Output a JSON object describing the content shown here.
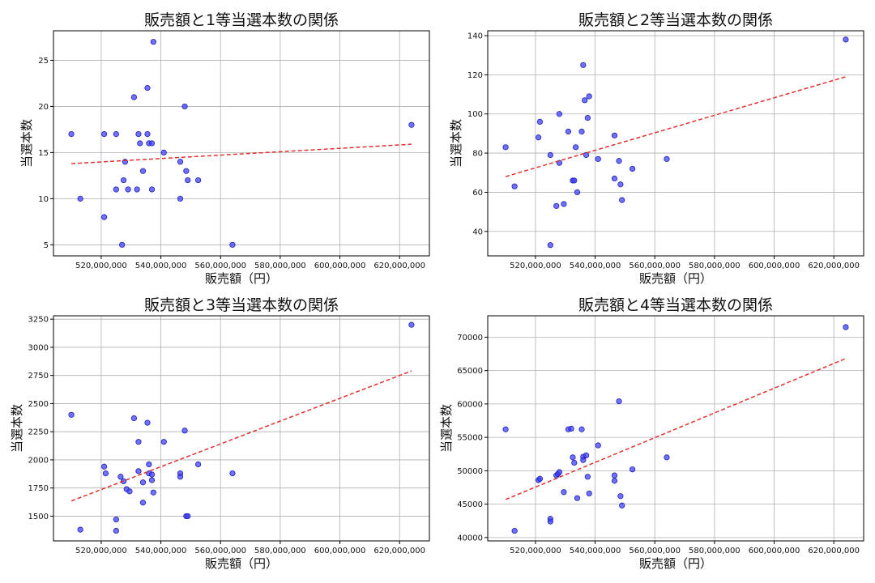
{
  "colors": {
    "points": "#3a3aff",
    "point_edge": "#1f1fb4",
    "trend": "#e03030"
  },
  "chart_data": [
    {
      "type": "scatter",
      "title": "販売額と1等当選本数の関係",
      "xlabel": "販売額（円）",
      "ylabel": "当選本数",
      "xlim": [
        504000000,
        630000000
      ],
      "ylim": [
        3.8,
        28.2
      ],
      "xticks": [
        520000000,
        540000000,
        560000000,
        580000000,
        600000000,
        620000000
      ],
      "xtick_labels": [
        "520,000,000",
        "540,000,000",
        "560,000,000",
        "580,000,000",
        "600,000,000",
        "620,000,000"
      ],
      "yticks": [
        5,
        10,
        15,
        20,
        25
      ],
      "ytick_labels": [
        "5",
        "10",
        "15",
        "20",
        "25"
      ],
      "grid": true,
      "trend": {
        "x": [
          510000000,
          624000000
        ],
        "y": [
          13.8,
          15.9
        ]
      },
      "x": [
        510000000,
        513000000,
        521000000,
        521000000,
        525000000,
        525000000,
        527000000,
        527500000,
        528000000,
        529000000,
        531000000,
        532000000,
        532500000,
        533000000,
        534000000,
        535500000,
        535500000,
        536000000,
        537000000,
        537000000,
        537500000,
        541000000,
        546500000,
        546500000,
        548000000,
        548500000,
        549000000,
        552500000,
        564000000,
        624000000
      ],
      "y": [
        17,
        10,
        17,
        8,
        17,
        11,
        5,
        12,
        14,
        11,
        21,
        11,
        17,
        16,
        13,
        22,
        17,
        16,
        16,
        11,
        27,
        15,
        14,
        10,
        20,
        13,
        12,
        12,
        5,
        18
      ]
    },
    {
      "type": "scatter",
      "title": "販売額と2等当選本数の関係",
      "xlabel": "販売額（円）",
      "ylabel": "当選本数",
      "xlim": [
        504000000,
        630000000
      ],
      "ylim": [
        27.5,
        142.5
      ],
      "xticks": [
        520000000,
        540000000,
        560000000,
        580000000,
        600000000,
        620000000
      ],
      "xtick_labels": [
        "520,000,000",
        "540,000,000",
        "560,000,000",
        "580,000,000",
        "600,000,000",
        "620,000,000"
      ],
      "yticks": [
        40,
        60,
        80,
        100,
        120,
        140
      ],
      "ytick_labels": [
        "40",
        "60",
        "80",
        "100",
        "120",
        "140"
      ],
      "grid": true,
      "trend": {
        "x": [
          510000000,
          624000000
        ],
        "y": [
          68,
          119
        ]
      },
      "x": [
        510000000,
        513000000,
        521000000,
        521500000,
        525000000,
        525000000,
        527000000,
        528000000,
        528000000,
        529500000,
        531000000,
        532500000,
        533000000,
        533500000,
        534000000,
        535500000,
        536000000,
        536500000,
        537000000,
        537500000,
        538000000,
        541000000,
        546500000,
        546500000,
        548000000,
        548500000,
        549000000,
        552500000,
        564000000,
        624000000
      ],
      "y": [
        83,
        63,
        88,
        96,
        79,
        33,
        53,
        75,
        100,
        54,
        91,
        66,
        66,
        83,
        60,
        91,
        125,
        107,
        79,
        98,
        109,
        77,
        89,
        67,
        76,
        64,
        56,
        72,
        77,
        138
      ]
    },
    {
      "type": "scatter",
      "title": "販売額と3等当選本数の関係",
      "xlabel": "販売額（円）",
      "ylabel": "当選本数",
      "xlim": [
        504000000,
        630000000
      ],
      "ylim": [
        1280,
        3280
      ],
      "xticks": [
        520000000,
        540000000,
        560000000,
        580000000,
        600000000,
        620000000
      ],
      "xtick_labels": [
        "520,000,000",
        "540,000,000",
        "560,000,000",
        "580,000,000",
        "600,000,000",
        "620,000,000"
      ],
      "yticks": [
        1500,
        1750,
        2000,
        2250,
        2500,
        2750,
        3000,
        3250
      ],
      "ytick_labels": [
        "1500",
        "1750",
        "2000",
        "2250",
        "2500",
        "2750",
        "3000",
        "3250"
      ],
      "grid": true,
      "trend": {
        "x": [
          510000000,
          624000000
        ],
        "y": [
          1635,
          2790
        ]
      },
      "x": [
        510000000,
        513000000,
        521000000,
        521500000,
        525000000,
        525000000,
        526500000,
        527500000,
        528500000,
        529500000,
        531000000,
        532500000,
        532500000,
        534000000,
        534000000,
        535500000,
        536000000,
        536000000,
        537000000,
        537000000,
        537500000,
        541000000,
        546500000,
        546500000,
        548000000,
        548500000,
        549000000,
        552500000,
        564000000,
        624000000
      ],
      "y": [
        2400,
        1380,
        1940,
        1880,
        1470,
        1370,
        1850,
        1810,
        1740,
        1720,
        2370,
        2160,
        1900,
        1620,
        1800,
        2330,
        1960,
        1880,
        1870,
        1820,
        1710,
        2160,
        1880,
        1850,
        2260,
        1500,
        1500,
        1960,
        1880,
        3200
      ]
    },
    {
      "type": "scatter",
      "title": "販売額と4等当選本数の関係",
      "xlabel": "販売額（円）",
      "ylabel": "当選本数",
      "xlim": [
        504000000,
        630000000
      ],
      "ylim": [
        39500,
        73200
      ],
      "xticks": [
        520000000,
        540000000,
        560000000,
        580000000,
        600000000,
        620000000
      ],
      "xtick_labels": [
        "520,000,000",
        "540,000,000",
        "560,000,000",
        "580,000,000",
        "600,000,000",
        "620,000,000"
      ],
      "yticks": [
        40000,
        45000,
        50000,
        55000,
        60000,
        65000,
        70000
      ],
      "ytick_labels": [
        "40000",
        "45000",
        "50000",
        "55000",
        "60000",
        "65000",
        "70000"
      ],
      "grid": true,
      "trend": {
        "x": [
          510000000,
          624000000
        ],
        "y": [
          45700,
          66800
        ]
      },
      "x": [
        510000000,
        513000000,
        521000000,
        521500000,
        525000000,
        525000000,
        527000000,
        527500000,
        528000000,
        529500000,
        531000000,
        532000000,
        532500000,
        533000000,
        534000000,
        535500000,
        536000000,
        536000000,
        537000000,
        537500000,
        538000000,
        541000000,
        546500000,
        546500000,
        548000000,
        548500000,
        549000000,
        552500000,
        564000000,
        624000000
      ],
      "y": [
        56200,
        41000,
        48600,
        48800,
        42800,
        42400,
        49300,
        49500,
        49800,
        46800,
        56200,
        56300,
        52000,
        51200,
        45900,
        56200,
        52100,
        51600,
        52300,
        49100,
        46600,
        53800,
        48500,
        49300,
        60400,
        46200,
        44800,
        50200,
        52000,
        71500
      ]
    }
  ]
}
